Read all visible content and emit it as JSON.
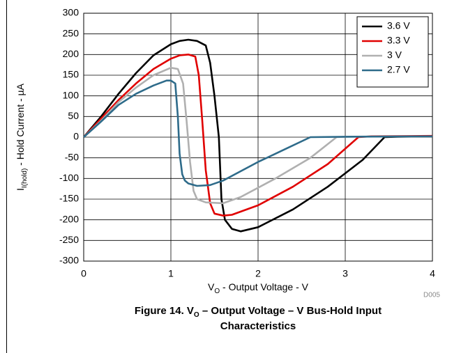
{
  "chart_data": {
    "type": "line",
    "title": [
      [
        {
          "text": "Figure 14. V"
        },
        {
          "text": "O",
          "sub": true
        },
        {
          "text": " – Output Voltage – V Bus-Hold Input"
        }
      ],
      [
        {
          "text": "Characteristics"
        }
      ]
    ],
    "xlabel": [
      {
        "text": "V"
      },
      {
        "text": "O",
        "sub": true
      },
      {
        "text": " - Output Voltage - V"
      }
    ],
    "ylabel": [
      {
        "text": "I"
      },
      {
        "text": "I(hold)",
        "sub": true
      },
      {
        "text": " - Hold Current - µA"
      }
    ],
    "annotation": "D005",
    "xlim": [
      0,
      4
    ],
    "xticks": [
      0,
      1,
      2,
      3,
      4
    ],
    "ylim": [
      -300,
      300
    ],
    "yticks": [
      -300,
      -250,
      -200,
      -150,
      -100,
      -50,
      0,
      50,
      100,
      150,
      200,
      250,
      300
    ],
    "grid": true,
    "legend": "upper right",
    "series": [
      {
        "name": "3.6 V",
        "color": "#000000",
        "x": [
          0,
          0.2,
          0.4,
          0.6,
          0.8,
          1.0,
          1.1,
          1.2,
          1.3,
          1.4,
          1.45,
          1.5,
          1.55,
          1.58,
          1.62,
          1.7,
          1.8,
          2.0,
          2.4,
          2.8,
          3.2,
          3.45,
          3.6,
          4.0
        ],
        "values": [
          0,
          50,
          105,
          155,
          198,
          225,
          233,
          236,
          233,
          222,
          180,
          100,
          0,
          -150,
          -200,
          -222,
          -228,
          -218,
          -175,
          -120,
          -55,
          0,
          1,
          2
        ]
      },
      {
        "name": "3.3 V",
        "color": "#e00000",
        "x": [
          0,
          0.2,
          0.4,
          0.6,
          0.8,
          1.0,
          1.1,
          1.2,
          1.28,
          1.32,
          1.36,
          1.4,
          1.45,
          1.5,
          1.6,
          1.7,
          2.0,
          2.4,
          2.8,
          3.15,
          3.3,
          4.0
        ],
        "values": [
          0,
          45,
          90,
          130,
          165,
          190,
          198,
          200,
          195,
          150,
          40,
          -80,
          -160,
          -185,
          -190,
          -188,
          -165,
          -120,
          -65,
          0,
          2,
          3
        ]
      },
      {
        "name": "3 V",
        "color": "#b0b0b0",
        "x": [
          0,
          0.2,
          0.4,
          0.6,
          0.8,
          1.0,
          1.08,
          1.14,
          1.18,
          1.22,
          1.26,
          1.3,
          1.4,
          1.6,
          1.8,
          2.2,
          2.6,
          2.9,
          3.0,
          4.0
        ],
        "values": [
          0,
          40,
          85,
          120,
          150,
          168,
          165,
          130,
          40,
          -60,
          -130,
          -150,
          -158,
          -160,
          -145,
          -100,
          -50,
          0,
          1,
          2
        ]
      },
      {
        "name": "2.7 V",
        "color": "#2e6b8a",
        "x": [
          0,
          0.2,
          0.4,
          0.6,
          0.8,
          0.95,
          1.0,
          1.05,
          1.08,
          1.1,
          1.13,
          1.16,
          1.2,
          1.3,
          1.45,
          1.6,
          2.0,
          2.3,
          2.6,
          3.0,
          4.0
        ],
        "values": [
          0,
          38,
          78,
          105,
          125,
          137,
          137,
          130,
          50,
          -40,
          -90,
          -105,
          -112,
          -118,
          -116,
          -105,
          -60,
          -30,
          0,
          1,
          2
        ]
      }
    ]
  }
}
